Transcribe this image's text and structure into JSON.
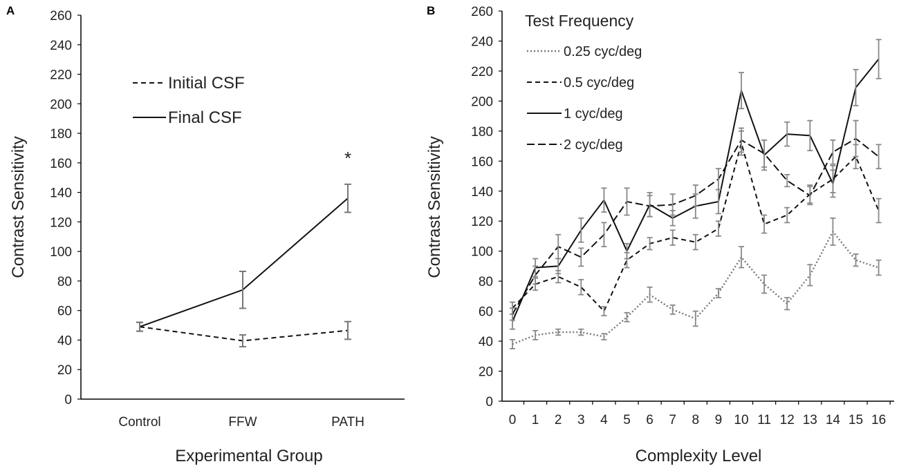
{
  "chart_data": [
    {
      "panel": "A",
      "type": "line",
      "xlabel": "Experimental Group",
      "ylabel": "Contrast Sensitivity",
      "ylim": [
        0,
        260
      ],
      "yticks": [
        0,
        20,
        40,
        60,
        80,
        100,
        120,
        140,
        160,
        180,
        200,
        220,
        240,
        260
      ],
      "categories": [
        "Control",
        "FFW",
        "PATH"
      ],
      "series": [
        {
          "name": "Initial CSF",
          "style": "dashed",
          "color": "#111111",
          "values": [
            49,
            39.5,
            46.5
          ],
          "errors": [
            3,
            4,
            6
          ]
        },
        {
          "name": "Final CSF",
          "style": "solid",
          "color": "#111111",
          "values": [
            49,
            74,
            136
          ],
          "errors": [
            3,
            12.5,
            9.5
          ]
        }
      ],
      "annotation": "*"
    },
    {
      "panel": "B",
      "type": "line",
      "xlabel": "Complexity Level",
      "ylabel": "Contrast Sensitivity",
      "ylim": [
        0,
        260
      ],
      "yticks": [
        0,
        20,
        40,
        60,
        80,
        100,
        120,
        140,
        160,
        180,
        200,
        220,
        240,
        260
      ],
      "x": [
        0,
        1,
        2,
        3,
        4,
        5,
        6,
        7,
        8,
        9,
        10,
        11,
        12,
        13,
        14,
        15,
        16
      ],
      "legend_title": "Test Frequency",
      "series": [
        {
          "name": "0.25 cyc/deg",
          "style": "dotted",
          "color": "#777777",
          "values": [
            38,
            44,
            46,
            46,
            43,
            56,
            71,
            61,
            55,
            72,
            96,
            78,
            65,
            84,
            113,
            94,
            89
          ],
          "errors": [
            3,
            3,
            2,
            2,
            2,
            3,
            5,
            3,
            5,
            3,
            7,
            6,
            4,
            7,
            9,
            4,
            5
          ]
        },
        {
          "name": "0.5 cyc/deg",
          "style": "dashed",
          "color": "#111111",
          "values": [
            62,
            78,
            83,
            76,
            60,
            94,
            105,
            109,
            106,
            115,
            172,
            118,
            124,
            138,
            148,
            163,
            127
          ],
          "errors": [
            4,
            4,
            4,
            5,
            3,
            5,
            4,
            5,
            5,
            5,
            8,
            6,
            5,
            6,
            9,
            8,
            8
          ]
        },
        {
          "name": "1 cyc/deg",
          "style": "solid",
          "color": "#111111",
          "values": [
            53,
            89,
            90,
            114,
            134,
            100,
            131,
            122,
            130,
            133,
            207,
            164,
            178,
            177,
            145,
            209,
            228
          ],
          "errors": [
            5,
            6,
            5,
            8,
            8,
            5,
            8,
            5,
            8,
            8,
            12,
            10,
            8,
            10,
            9,
            12,
            13
          ]
        },
        {
          "name": "2 cyc/deg",
          "style": "dashed-short",
          "color": "#111111",
          "values": [
            58,
            84,
            103,
            96,
            111,
            133,
            130,
            131,
            137,
            148,
            174,
            165,
            147,
            137,
            166,
            175,
            163
          ],
          "errors": [
            4,
            6,
            8,
            6,
            8,
            9,
            7,
            7,
            7,
            7,
            8,
            9,
            4,
            6,
            8,
            12,
            8
          ]
        }
      ]
    }
  ]
}
